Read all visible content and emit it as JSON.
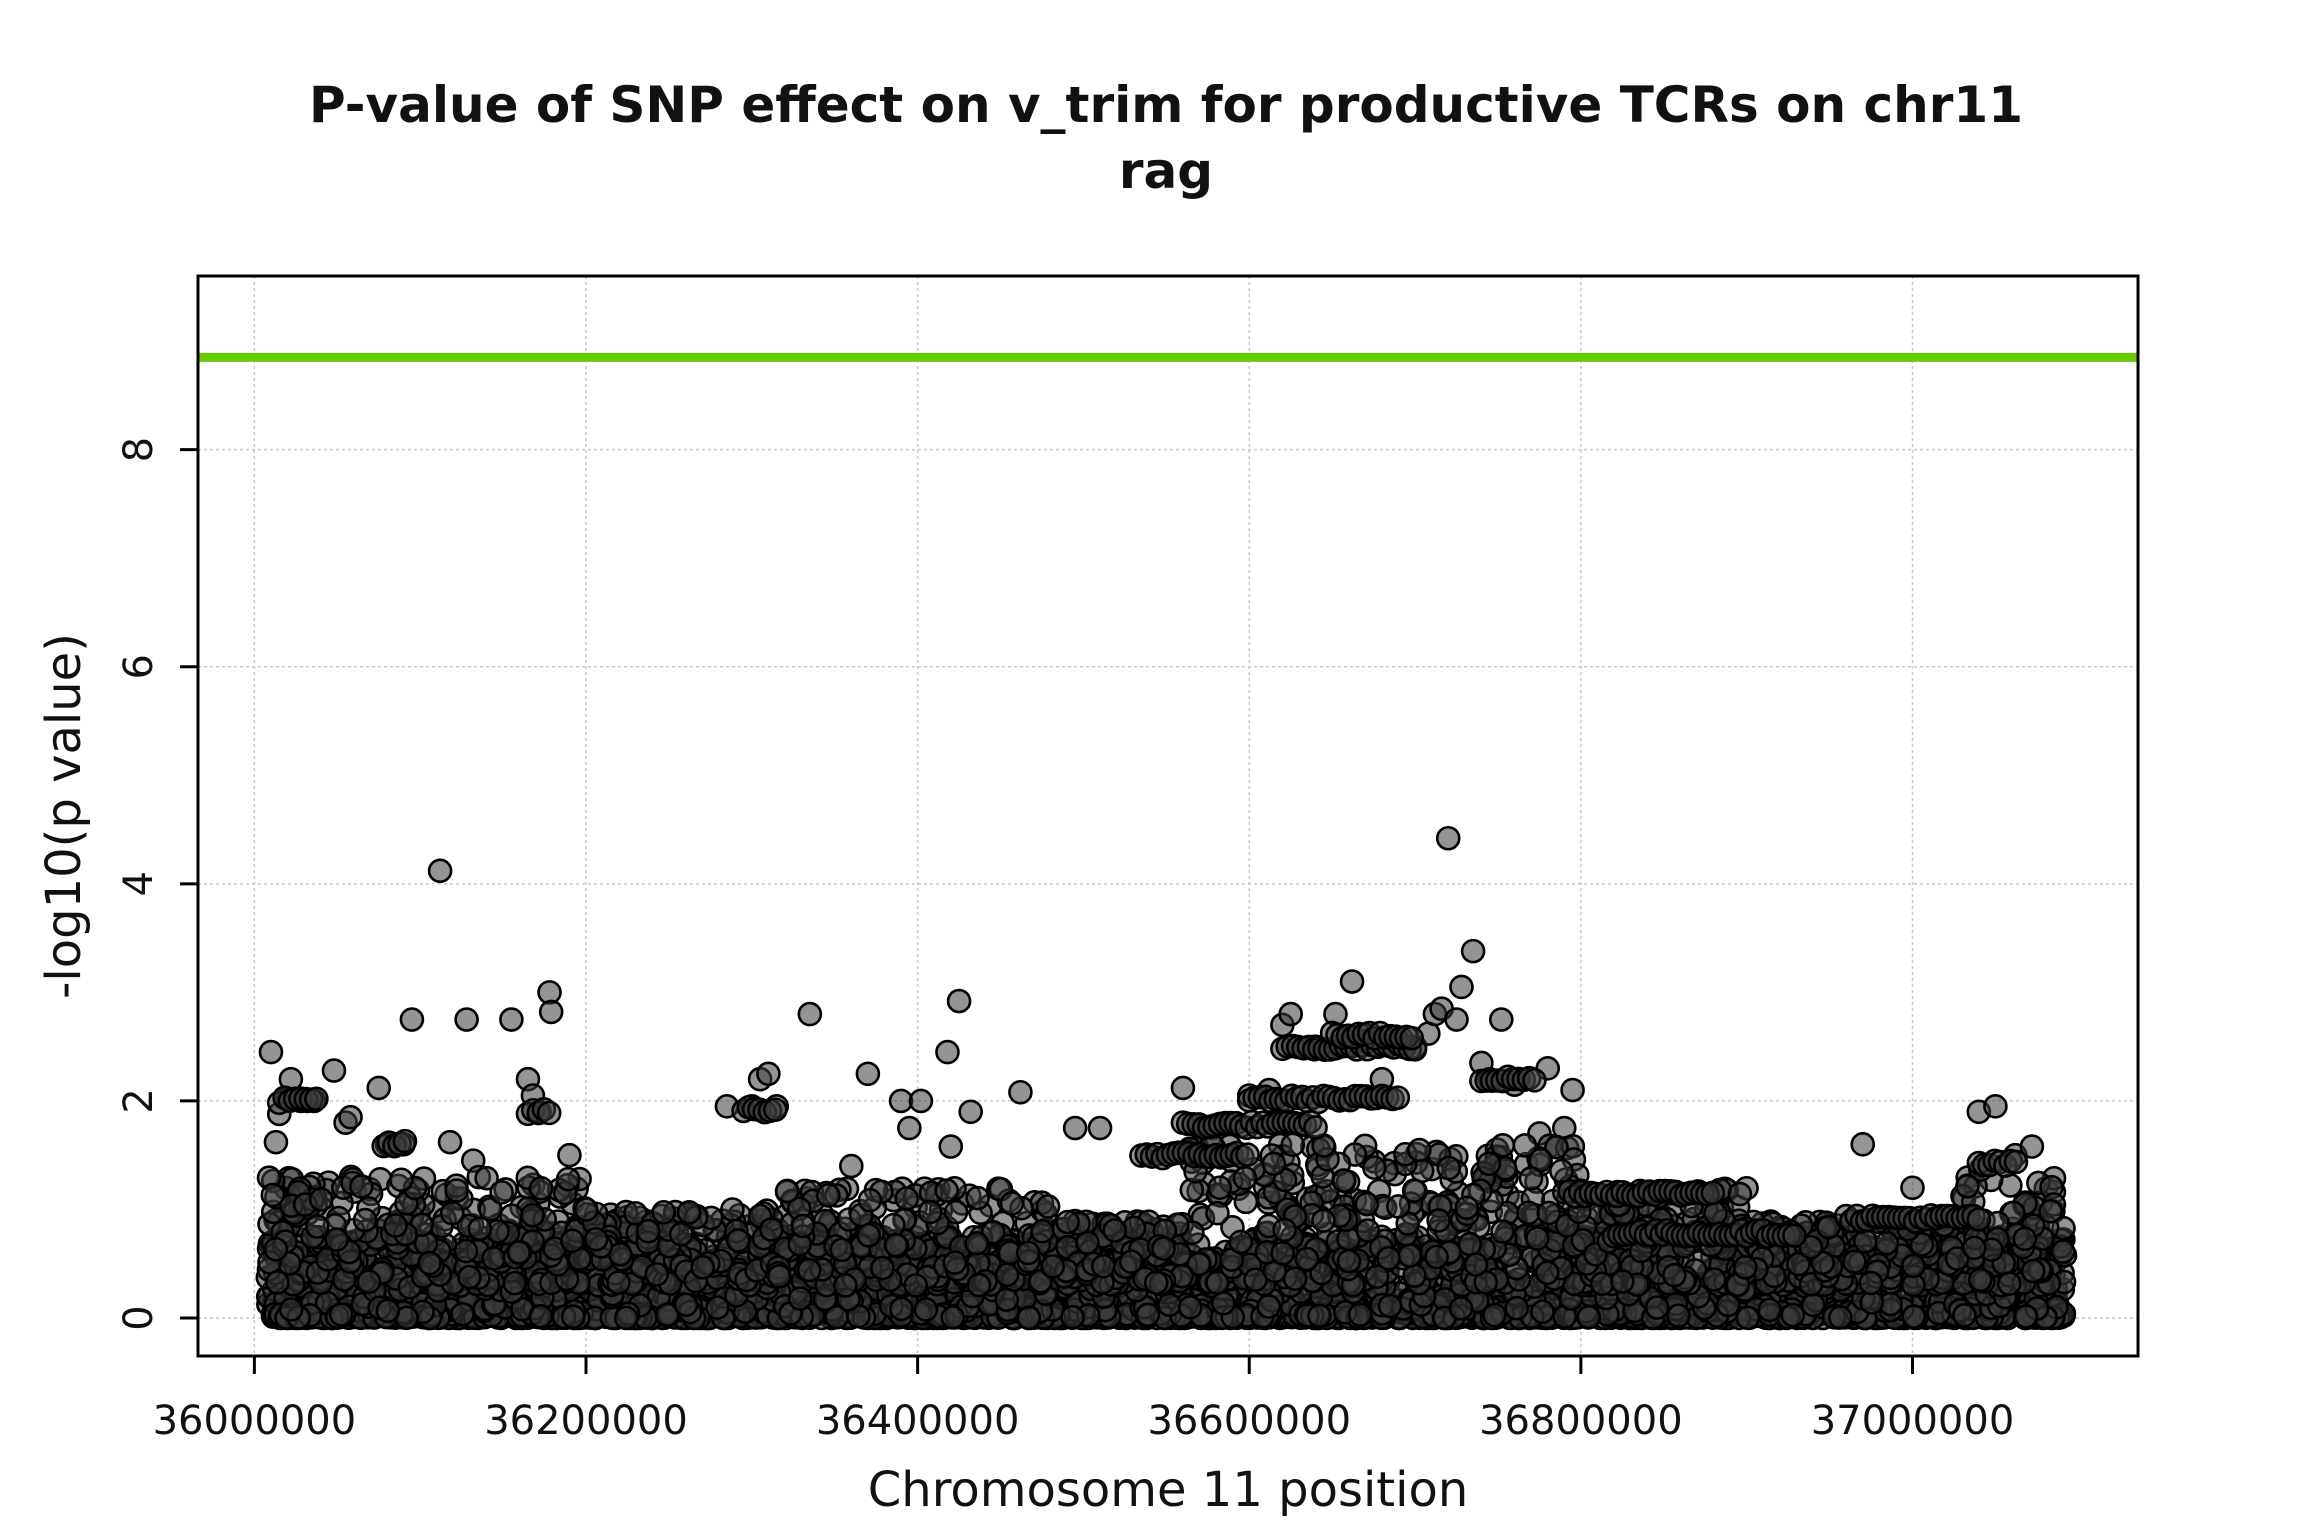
{
  "chart_data": {
    "type": "scatter",
    "title": "P-value of SNP effect on v_trim for productive TCRs on chr11",
    "subtitle": "rag",
    "xlabel": "Chromosome 11 position",
    "ylabel": "-log10(p value)",
    "xlim": [
      35966000,
      37136000
    ],
    "ylim": [
      -0.35,
      9.6
    ],
    "x_ticks": [
      36000000,
      36200000,
      36400000,
      36600000,
      36800000,
      37000000
    ],
    "x_tick_labels": [
      "36000000",
      "36200000",
      "36400000",
      "36600000",
      "36800000",
      "37000000"
    ],
    "y_ticks": [
      0,
      2,
      4,
      6,
      8
    ],
    "y_tick_labels": [
      "0",
      "2",
      "4",
      "6",
      "8"
    ],
    "grid": true,
    "threshold_line": {
      "y": 8.85,
      "color": "#66cc00"
    },
    "point_fill": "#505050",
    "point_stroke": "#000000",
    "points": [
      [
        36010000,
        2.45
      ],
      [
        36015000,
        1.88
      ],
      [
        36013000,
        1.62
      ],
      [
        36020000,
        2.02
      ],
      [
        36022000,
        2.2
      ],
      [
        36028000,
        2.0
      ],
      [
        36032000,
        2.0
      ],
      [
        36036000,
        2.0
      ],
      [
        36048000,
        2.28
      ],
      [
        36055000,
        1.8
      ],
      [
        36058000,
        1.85
      ],
      [
        36075000,
        2.12
      ],
      [
        36080000,
        1.6
      ],
      [
        36085000,
        1.6
      ],
      [
        36090000,
        1.6
      ],
      [
        36095000,
        2.75
      ],
      [
        36112000,
        4.12
      ],
      [
        36118000,
        1.62
      ],
      [
        36128000,
        2.75
      ],
      [
        36132000,
        1.45
      ],
      [
        36155000,
        2.75
      ],
      [
        36165000,
        2.2
      ],
      [
        36168000,
        2.05
      ],
      [
        36172000,
        1.9
      ],
      [
        36178000,
        3.0
      ],
      [
        36179000,
        2.82
      ],
      [
        36190000,
        1.5
      ],
      [
        36285000,
        1.95
      ],
      [
        36300000,
        1.95
      ],
      [
        36305000,
        2.2
      ],
      [
        36310000,
        2.25
      ],
      [
        36315000,
        1.95
      ],
      [
        36335000,
        2.8
      ],
      [
        36360000,
        1.4
      ],
      [
        36370000,
        2.25
      ],
      [
        36390000,
        2.0
      ],
      [
        36395000,
        1.75
      ],
      [
        36402000,
        2.0
      ],
      [
        36418000,
        2.45
      ],
      [
        36420000,
        1.58
      ],
      [
        36425000,
        2.92
      ],
      [
        36432000,
        1.9
      ],
      [
        36462000,
        2.08
      ],
      [
        36495000,
        1.75
      ],
      [
        36510000,
        1.75
      ],
      [
        36560000,
        2.12
      ],
      [
        36578000,
        1.75
      ],
      [
        36600000,
        2.05
      ],
      [
        36612000,
        2.1
      ],
      [
        36620000,
        2.7
      ],
      [
        36625000,
        2.8
      ],
      [
        36640000,
        2.5
      ],
      [
        36652000,
        2.8
      ],
      [
        36655000,
        2.5
      ],
      [
        36662000,
        3.1
      ],
      [
        36670000,
        2.55
      ],
      [
        36680000,
        2.2
      ],
      [
        36690000,
        2.55
      ],
      [
        36700000,
        2.5
      ],
      [
        36708000,
        2.62
      ],
      [
        36712000,
        2.8
      ],
      [
        36716000,
        2.85
      ],
      [
        36720000,
        4.42
      ],
      [
        36725000,
        2.75
      ],
      [
        36728000,
        3.05
      ],
      [
        36735000,
        3.38
      ],
      [
        36740000,
        2.35
      ],
      [
        36745000,
        2.2
      ],
      [
        36752000,
        2.75
      ],
      [
        36760000,
        2.15
      ],
      [
        36775000,
        1.7
      ],
      [
        36780000,
        2.3
      ],
      [
        36790000,
        1.75
      ],
      [
        36795000,
        2.1
      ],
      [
        36970000,
        1.6
      ],
      [
        37000000,
        1.2
      ],
      [
        37040000,
        1.9
      ],
      [
        37050000,
        1.95
      ],
      [
        37062000,
        1.5
      ],
      [
        37072000,
        1.58
      ]
    ]
  }
}
